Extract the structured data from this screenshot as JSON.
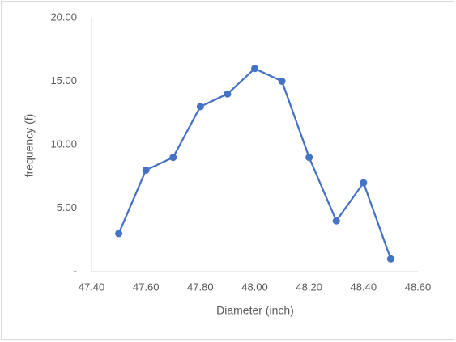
{
  "chart_data": {
    "type": "line",
    "x_label": "Diameter (inch)",
    "y_label": "frequency (f)",
    "x": [
      47.5,
      47.6,
      47.7,
      47.8,
      47.9,
      48.0,
      48.1,
      48.2,
      48.3,
      48.4,
      48.5
    ],
    "series": [
      {
        "color": "#4472c4",
        "values": [
          3,
          8,
          9,
          13,
          14,
          16,
          15,
          9,
          4,
          7,
          1
        ]
      }
    ],
    "xlim": [
      47.4,
      48.6
    ],
    "xticks": [
      {
        "value": 47.4,
        "label": "47.40"
      },
      {
        "value": 47.6,
        "label": "47.60"
      },
      {
        "value": 47.8,
        "label": "47.80"
      },
      {
        "value": 48.0,
        "label": "48.00"
      },
      {
        "value": 48.2,
        "label": "48.20"
      },
      {
        "value": 48.4,
        "label": "48.40"
      },
      {
        "value": 48.6,
        "label": "48.60"
      }
    ],
    "ylim": [
      0,
      20
    ],
    "yticks": [
      {
        "value": 0,
        "label": "-"
      },
      {
        "value": 5,
        "label": "5.00"
      },
      {
        "value": 10,
        "label": "10.00"
      },
      {
        "value": 15,
        "label": "15.00"
      },
      {
        "value": 20,
        "label": "20.00"
      }
    ],
    "grid": false
  }
}
